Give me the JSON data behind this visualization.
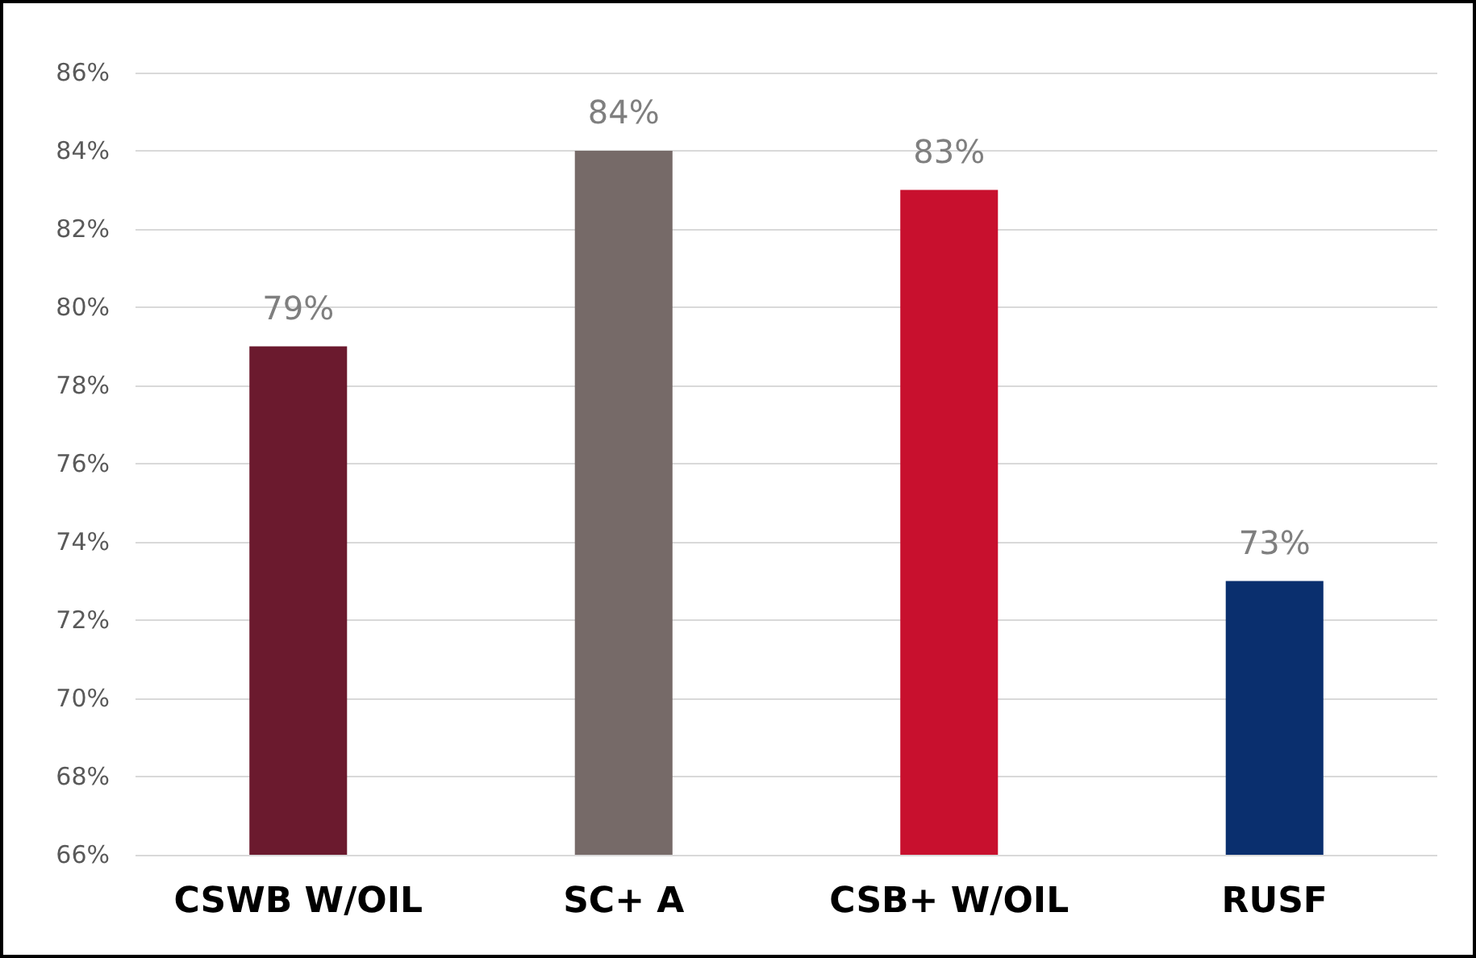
{
  "chart_data": {
    "type": "bar",
    "categories": [
      "CSWB W/OIL",
      "SC+ A",
      "CSB+ W/OIL",
      "RUSF"
    ],
    "values": [
      79,
      84,
      83,
      73
    ],
    "colors": [
      "#6b1a2e",
      "#766a68",
      "#c8102e",
      "#0a2f6e"
    ],
    "value_labels": [
      "79%",
      "84%",
      "83%",
      "73%"
    ],
    "ylim": [
      66,
      86
    ],
    "yticks": [
      {
        "value": 66,
        "label": "66%"
      },
      {
        "value": 68,
        "label": "68%"
      },
      {
        "value": 70,
        "label": "70%"
      },
      {
        "value": 72,
        "label": "72%"
      },
      {
        "value": 74,
        "label": "74%"
      },
      {
        "value": 76,
        "label": "76%"
      },
      {
        "value": 78,
        "label": "78%"
      },
      {
        "value": 80,
        "label": "80%"
      },
      {
        "value": 82,
        "label": "82%"
      },
      {
        "value": 84,
        "label": "84%"
      },
      {
        "value": 86,
        "label": "86%"
      }
    ],
    "grid": "y"
  }
}
